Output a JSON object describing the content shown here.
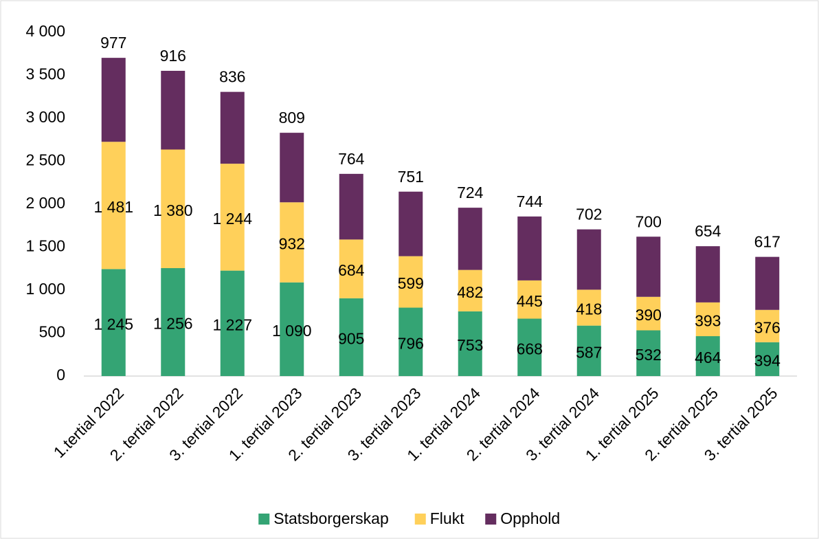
{
  "chart_data": {
    "type": "stacked_bar",
    "categories": [
      "1.tertial 2022",
      "2. tertial 2022",
      "3. tertial 2022",
      "1. tertial 2023",
      "2. tertial 2023",
      "3. tertial 2023",
      "1. tertial 2024",
      "2. tertial 2024",
      "3. tertial 2024",
      "1. tertial 2025",
      "2. tertial 2025",
      "3. tertial 2025"
    ],
    "series": [
      {
        "name": "Statsborgerskap",
        "color": "#34a474",
        "values": [
          1245,
          1256,
          1227,
          1090,
          905,
          796,
          753,
          668,
          587,
          532,
          464,
          394
        ],
        "value_labels": [
          "1 245",
          "1 256",
          "1 227",
          "1 090",
          "905",
          "796",
          "753",
          "668",
          "587",
          "532",
          "464",
          "394"
        ]
      },
      {
        "name": "Flukt",
        "color": "#ffd05a",
        "values": [
          1481,
          1380,
          1244,
          932,
          684,
          599,
          482,
          445,
          418,
          390,
          393,
          376
        ],
        "value_labels": [
          "1 481",
          "1 380",
          "1 244",
          "932",
          "684",
          "599",
          "482",
          "445",
          "418",
          "390",
          "393",
          "376"
        ]
      },
      {
        "name": "Opphold",
        "color": "#642d5f",
        "values": [
          977,
          916,
          836,
          809,
          764,
          751,
          724,
          744,
          702,
          700,
          654,
          617
        ],
        "value_labels": [
          "977",
          "916",
          "836",
          "809",
          "764",
          "751",
          "724",
          "744",
          "702",
          "700",
          "654",
          "617"
        ]
      }
    ],
    "ylim": [
      0,
      4000
    ],
    "yticks": [
      0,
      500,
      {
        "value": 1000,
        "label": "1 000"
      },
      {
        "value": 1500,
        "label": "1 500"
      },
      {
        "value": 2000,
        "label": "2 000"
      },
      {
        "value": 2500,
        "label": "2 500"
      },
      {
        "value": 3000,
        "label": "3 000"
      },
      {
        "value": 3500,
        "label": "3 500"
      },
      {
        "value": 4000,
        "label": "4 000"
      }
    ],
    "legend": "bottom"
  }
}
